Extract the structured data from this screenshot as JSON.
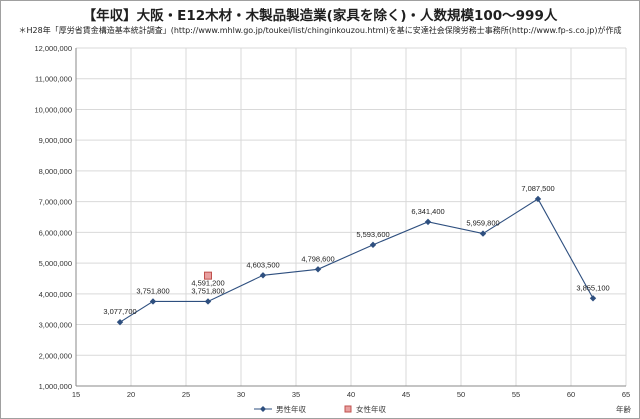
{
  "title": "【年収】大阪・E12木材・木製品製造業(家具を除く)・人数規模100～999人",
  "subtitle": "＊H28年「厚労省賃金構造基本統計調査」(http://www.mhlw.go.jp/toukei/list/chinginkouzou.html)を基に安達社会保険労務士事務所(http://www.fp-s.co.jp)が作成",
  "colors": {
    "male": "#2e4f7f",
    "female_fill": "#e8a0a0",
    "female_stroke": "#c0504d",
    "grid": "#d9d9d9",
    "axis": "#888888"
  },
  "chart_data": {
    "type": "scatter",
    "title": "【年収】大阪・E12木材・木製品製造業(家具を除く)・人数規模100～999人",
    "xlabel": "年齢",
    "ylabel": "",
    "xlim": [
      15,
      65
    ],
    "ylim": [
      1000000,
      12000000
    ],
    "x_ticks": [
      15,
      20,
      25,
      30,
      35,
      40,
      45,
      50,
      55,
      60,
      65
    ],
    "y_ticks": [
      1000000,
      2000000,
      3000000,
      4000000,
      5000000,
      6000000,
      7000000,
      8000000,
      9000000,
      10000000,
      11000000,
      12000000
    ],
    "x_tick_labels": [
      "15",
      "20",
      "25",
      "30",
      "35",
      "40",
      "45",
      "50",
      "55",
      "60",
      "65"
    ],
    "y_tick_labels": [
      "1,000,000",
      "2,000,000",
      "3,000,000",
      "4,000,000",
      "5,000,000",
      "6,000,000",
      "7,000,000",
      "8,000,000",
      "9,000,000",
      "10,000,000",
      "11,000,000",
      "12,000,000"
    ],
    "grid": true,
    "legend_position": "bottom",
    "series": [
      {
        "name": "男性年収",
        "marker": "diamond",
        "line": true,
        "x": [
          19,
          22,
          27,
          32,
          37,
          42,
          47,
          52,
          57,
          62
        ],
        "y": [
          3077700,
          3751800,
          3751800,
          4603500,
          4798600,
          5593600,
          6341400,
          5959800,
          7087500,
          3855100
        ],
        "labels": [
          "3,077,700",
          "3,751,800",
          "3,751,800",
          "4,603,500",
          "4,798,600",
          "5,593,600",
          "6,341,400",
          "5,959,800",
          "7,087,500",
          "3,855,100"
        ]
      },
      {
        "name": "女性年収",
        "marker": "square",
        "line": false,
        "x": [
          27
        ],
        "y": [
          4591200
        ],
        "labels": [
          "4,591,200"
        ]
      }
    ]
  }
}
